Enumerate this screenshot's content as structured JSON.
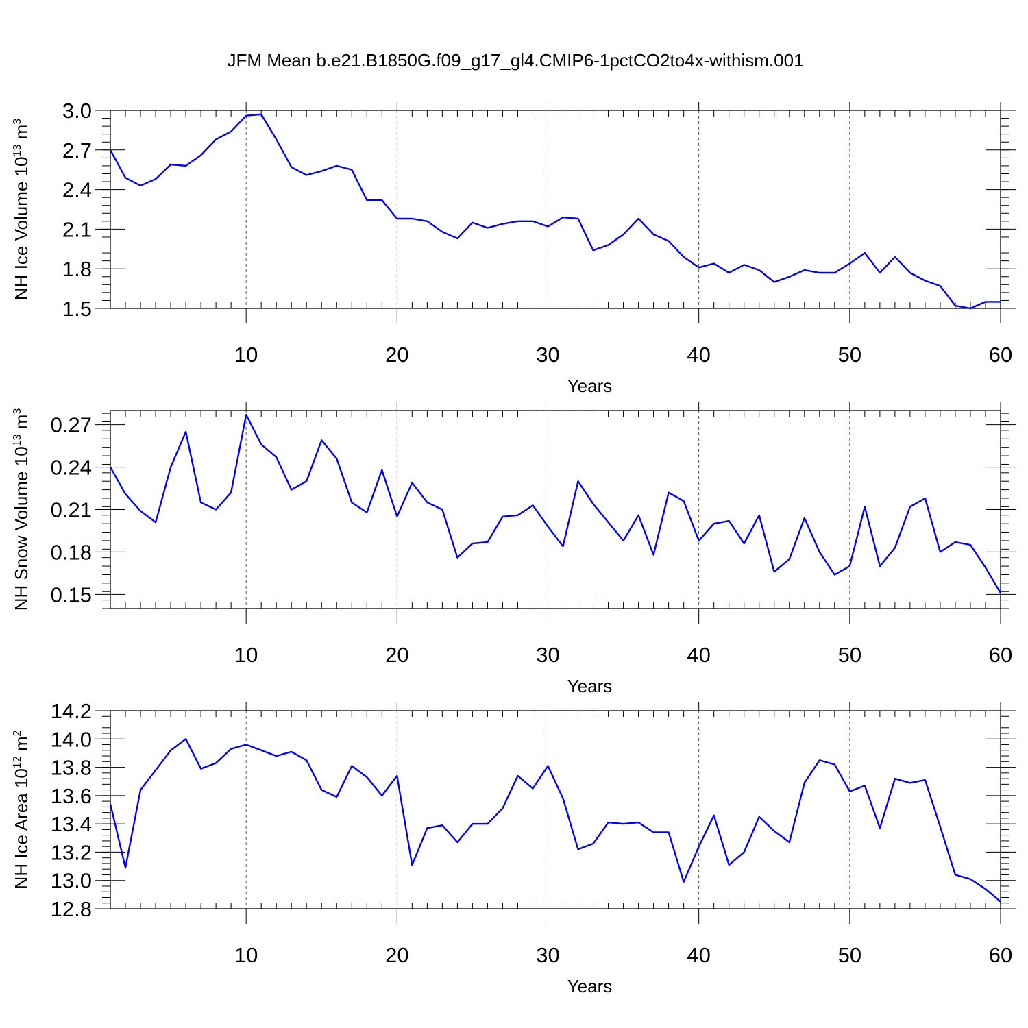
{
  "title": "JFM Mean b.e21.B1850G.f09_g17_gl4.CMIP6-1pctCO2to4x-withism.001",
  "colors": {
    "line": "#0000ff",
    "axis": "#000000",
    "grid": "#555555"
  },
  "chart_data": [
    {
      "type": "line",
      "xlabel": "Years",
      "ylabel": {
        "base": "NH Ice Volume 10",
        "exp": "13",
        "unit": " m",
        "unit_exp": "3"
      },
      "xlim": [
        1,
        60
      ],
      "ylim": [
        1.5,
        3.0
      ],
      "x_ticks": [
        10,
        20,
        30,
        40,
        50,
        60
      ],
      "y_ticks": [
        1.5,
        1.8,
        2.1,
        2.4,
        2.7,
        3.0
      ],
      "y_tick_labels": [
        "1.5",
        "1.8",
        "2.1",
        "2.4",
        "2.7",
        "3.0"
      ],
      "y_minor_step": 0.06,
      "grid": "vertical dashed at major x ticks",
      "x": [
        1,
        2,
        3,
        4,
        5,
        6,
        7,
        8,
        9,
        10,
        11,
        12,
        13,
        14,
        15,
        16,
        17,
        18,
        19,
        20,
        21,
        22,
        23,
        24,
        25,
        26,
        27,
        28,
        29,
        30,
        31,
        32,
        33,
        34,
        35,
        36,
        37,
        38,
        39,
        40,
        41,
        42,
        43,
        44,
        45,
        46,
        47,
        48,
        49,
        50,
        51,
        52,
        53,
        54,
        55,
        56,
        57,
        58,
        59,
        60
      ],
      "values": [
        2.7,
        2.49,
        2.43,
        2.48,
        2.59,
        2.58,
        2.66,
        2.78,
        2.84,
        2.96,
        2.97,
        2.78,
        2.57,
        2.51,
        2.54,
        2.58,
        2.55,
        2.32,
        2.32,
        2.18,
        2.18,
        2.16,
        2.08,
        2.03,
        2.15,
        2.11,
        2.14,
        2.16,
        2.16,
        2.12,
        2.19,
        2.18,
        1.94,
        1.98,
        2.06,
        2.18,
        2.06,
        2.01,
        1.89,
        1.81,
        1.84,
        1.77,
        1.83,
        1.79,
        1.7,
        1.74,
        1.79,
        1.77,
        1.77,
        1.84,
        1.92,
        1.77,
        1.89,
        1.77,
        1.71,
        1.67,
        1.52,
        1.5,
        1.55,
        1.55
      ]
    },
    {
      "type": "line",
      "xlabel": "Years",
      "ylabel": {
        "base": "NH Snow Volume 10",
        "exp": "13",
        "unit": " m",
        "unit_exp": "3"
      },
      "xlim": [
        1,
        60
      ],
      "ylim": [
        0.14,
        0.28
      ],
      "x_ticks": [
        10,
        20,
        30,
        40,
        50,
        60
      ],
      "y_ticks": [
        0.15,
        0.18,
        0.21,
        0.24,
        0.27
      ],
      "y_tick_labels": [
        "0.15",
        "0.18",
        "0.21",
        "0.24",
        "0.27"
      ],
      "y_minor_step": 0.006,
      "grid": "vertical dashed at major x ticks",
      "x": [
        1,
        2,
        3,
        4,
        5,
        6,
        7,
        8,
        9,
        10,
        11,
        12,
        13,
        14,
        15,
        16,
        17,
        18,
        19,
        20,
        21,
        22,
        23,
        24,
        25,
        26,
        27,
        28,
        29,
        30,
        31,
        32,
        33,
        34,
        35,
        36,
        37,
        38,
        39,
        40,
        41,
        42,
        43,
        44,
        45,
        46,
        47,
        48,
        49,
        50,
        51,
        52,
        53,
        54,
        55,
        56,
        57,
        58,
        59,
        60
      ],
      "values": [
        0.24,
        0.221,
        0.209,
        0.201,
        0.24,
        0.265,
        0.215,
        0.21,
        0.222,
        0.277,
        0.256,
        0.247,
        0.224,
        0.23,
        0.259,
        0.246,
        0.215,
        0.208,
        0.238,
        0.205,
        0.229,
        0.215,
        0.21,
        0.176,
        0.186,
        0.187,
        0.205,
        0.206,
        0.213,
        0.198,
        0.184,
        0.23,
        0.214,
        0.201,
        0.188,
        0.206,
        0.178,
        0.222,
        0.216,
        0.188,
        0.2,
        0.202,
        0.186,
        0.206,
        0.166,
        0.175,
        0.204,
        0.18,
        0.164,
        0.17,
        0.212,
        0.17,
        0.183,
        0.212,
        0.218,
        0.18,
        0.187,
        0.185,
        0.169,
        0.151
      ]
    },
    {
      "type": "line",
      "xlabel": "Years",
      "ylabel": {
        "base": "NH Ice Area 10",
        "exp": "12",
        "unit": " m",
        "unit_exp": "2"
      },
      "xlim": [
        1,
        60
      ],
      "ylim": [
        12.8,
        14.2
      ],
      "x_ticks": [
        10,
        20,
        30,
        40,
        50,
        60
      ],
      "y_ticks": [
        12.8,
        13.0,
        13.2,
        13.4,
        13.6,
        13.8,
        14.0,
        14.2
      ],
      "y_tick_labels": [
        "12.8",
        "13.0",
        "13.2",
        "13.4",
        "13.6",
        "13.8",
        "14.0",
        "14.2"
      ],
      "y_minor_step": 0.04,
      "grid": "vertical dashed at major x ticks",
      "x": [
        1,
        2,
        3,
        4,
        5,
        6,
        7,
        8,
        9,
        10,
        11,
        12,
        13,
        14,
        15,
        16,
        17,
        18,
        19,
        20,
        21,
        22,
        23,
        24,
        25,
        26,
        27,
        28,
        29,
        30,
        31,
        32,
        33,
        34,
        35,
        36,
        37,
        38,
        39,
        40,
        41,
        42,
        43,
        44,
        45,
        46,
        47,
        48,
        49,
        50,
        51,
        52,
        53,
        54,
        55,
        56,
        57,
        58,
        59,
        60
      ],
      "values": [
        13.54,
        13.09,
        13.64,
        13.78,
        13.92,
        14.0,
        13.79,
        13.83,
        13.93,
        13.96,
        13.92,
        13.88,
        13.91,
        13.85,
        13.64,
        13.59,
        13.81,
        13.73,
        13.6,
        13.74,
        13.11,
        13.37,
        13.39,
        13.27,
        13.4,
        13.4,
        13.51,
        13.74,
        13.65,
        13.81,
        13.58,
        13.22,
        13.26,
        13.41,
        13.4,
        13.41,
        13.34,
        13.34,
        12.99,
        13.24,
        13.46,
        13.11,
        13.2,
        13.45,
        13.35,
        13.27,
        13.69,
        13.85,
        13.82,
        13.63,
        13.67,
        13.37,
        13.72,
        13.69,
        13.71,
        13.38,
        13.04,
        13.01,
        12.94,
        12.85
      ]
    }
  ]
}
